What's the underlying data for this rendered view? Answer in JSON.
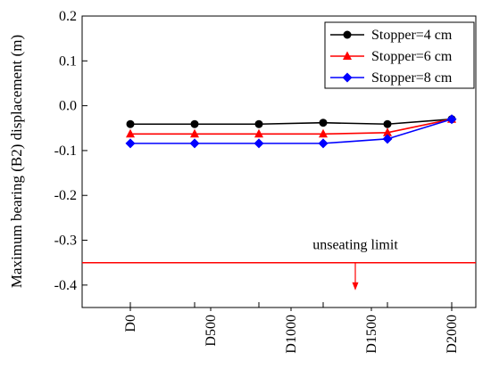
{
  "chart_data": {
    "type": "line",
    "ylabel": "Maximum bearing (B2) displacement (m)",
    "xlabel": "",
    "categories": [
      "D0",
      "D500",
      "D1000",
      "D1500",
      "D2000"
    ],
    "x": [
      0,
      400,
      800,
      1200,
      1600,
      2000
    ],
    "ylim": [
      -0.45,
      0.2
    ],
    "yticks": [
      "0.2",
      "0.1",
      "0.0",
      "-0.1",
      "-0.2",
      "-0.3",
      "-0.4"
    ],
    "series": [
      {
        "name": "Stopper=4 cm",
        "color": "#000000",
        "marker": "circle",
        "values": [
          -0.041,
          -0.041,
          -0.041,
          -0.038,
          -0.041,
          -0.03
        ]
      },
      {
        "name": "Stopper=6 cm",
        "color": "#ff0000",
        "marker": "triangle",
        "values": [
          -0.063,
          -0.063,
          -0.063,
          -0.063,
          -0.06,
          -0.03
        ]
      },
      {
        "name": "Stopper=8 cm",
        "color": "#0000ff",
        "marker": "diamond",
        "values": [
          -0.084,
          -0.084,
          -0.084,
          -0.084,
          -0.074,
          -0.03
        ]
      }
    ],
    "reference_line": {
      "label": "unseating limit",
      "value": -0.35,
      "color": "#ff0000"
    },
    "legend_position": "top-right",
    "grid": false
  }
}
